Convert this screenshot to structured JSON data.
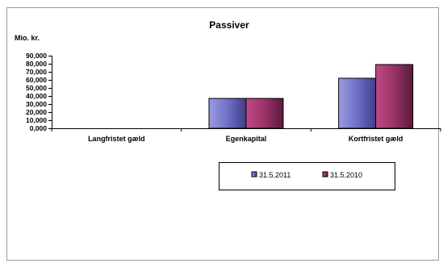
{
  "chart_data": {
    "type": "bar",
    "title": "Passiver",
    "ylabel": "Mio. kr.",
    "xlabel": "",
    "categories": [
      "Langfristet gæld",
      "Egenkapital",
      "Kortfristet gæld"
    ],
    "series": [
      {
        "name": "31.5.2011",
        "values": [
          0,
          37,
          62
        ],
        "color": "#7777cc"
      },
      {
        "name": "31.5.2010",
        "values": [
          0,
          37,
          79
        ],
        "color": "#993366"
      }
    ],
    "ylim": [
      0,
      90
    ],
    "yticks": [
      "0,000",
      "10,000",
      "20,000",
      "30,000",
      "40,000",
      "50,000",
      "60,000",
      "70,000",
      "80,000",
      "90,000"
    ],
    "ytick_values": [
      0,
      10,
      20,
      30,
      40,
      50,
      60,
      70,
      80,
      90
    ],
    "grid": false,
    "legend_position": "bottom"
  }
}
